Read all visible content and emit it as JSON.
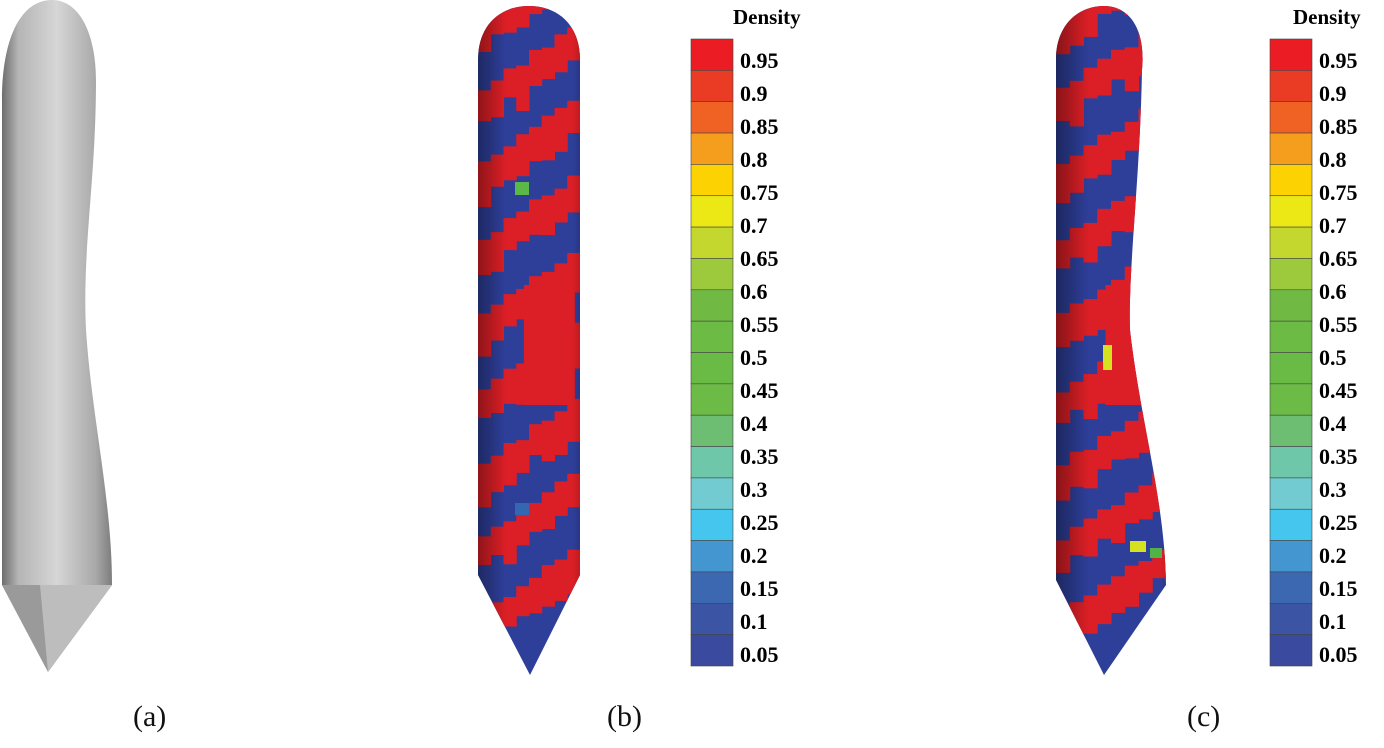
{
  "panels": [
    {
      "caption": "(a)",
      "render": "grey-shaded-geometry"
    },
    {
      "caption": "(b)",
      "render": "density-colored-geometry"
    },
    {
      "caption": "(c)",
      "render": "density-colored-deformed-geometry"
    }
  ],
  "colorbar": {
    "title": "Density",
    "labels": [
      "0.95",
      "0.9",
      "0.85",
      "0.8",
      "0.75",
      "0.7",
      "0.65",
      "0.6",
      "0.55",
      "0.5",
      "0.45",
      "0.4",
      "0.35",
      "0.3",
      "0.25",
      "0.2",
      "0.15",
      "0.1",
      "0.05"
    ],
    "colors": [
      "#ec1c24",
      "#ea3b24",
      "#ef6223",
      "#f59e1e",
      "#fcd203",
      "#ebe815",
      "#c4d72f",
      "#9dc93c",
      "#70ba44",
      "#6cbb45",
      "#6abb46",
      "#6cbb46",
      "#6dbe72",
      "#6fc7a9",
      "#71cbd1",
      "#45c6ee",
      "#4496d0",
      "#3b68b0",
      "#3b55a4",
      "#3a4b9f"
    ]
  },
  "colors": {
    "solid": "#ec1c24",
    "void": "#2e3f9a",
    "grey": "#b9b9b9"
  }
}
